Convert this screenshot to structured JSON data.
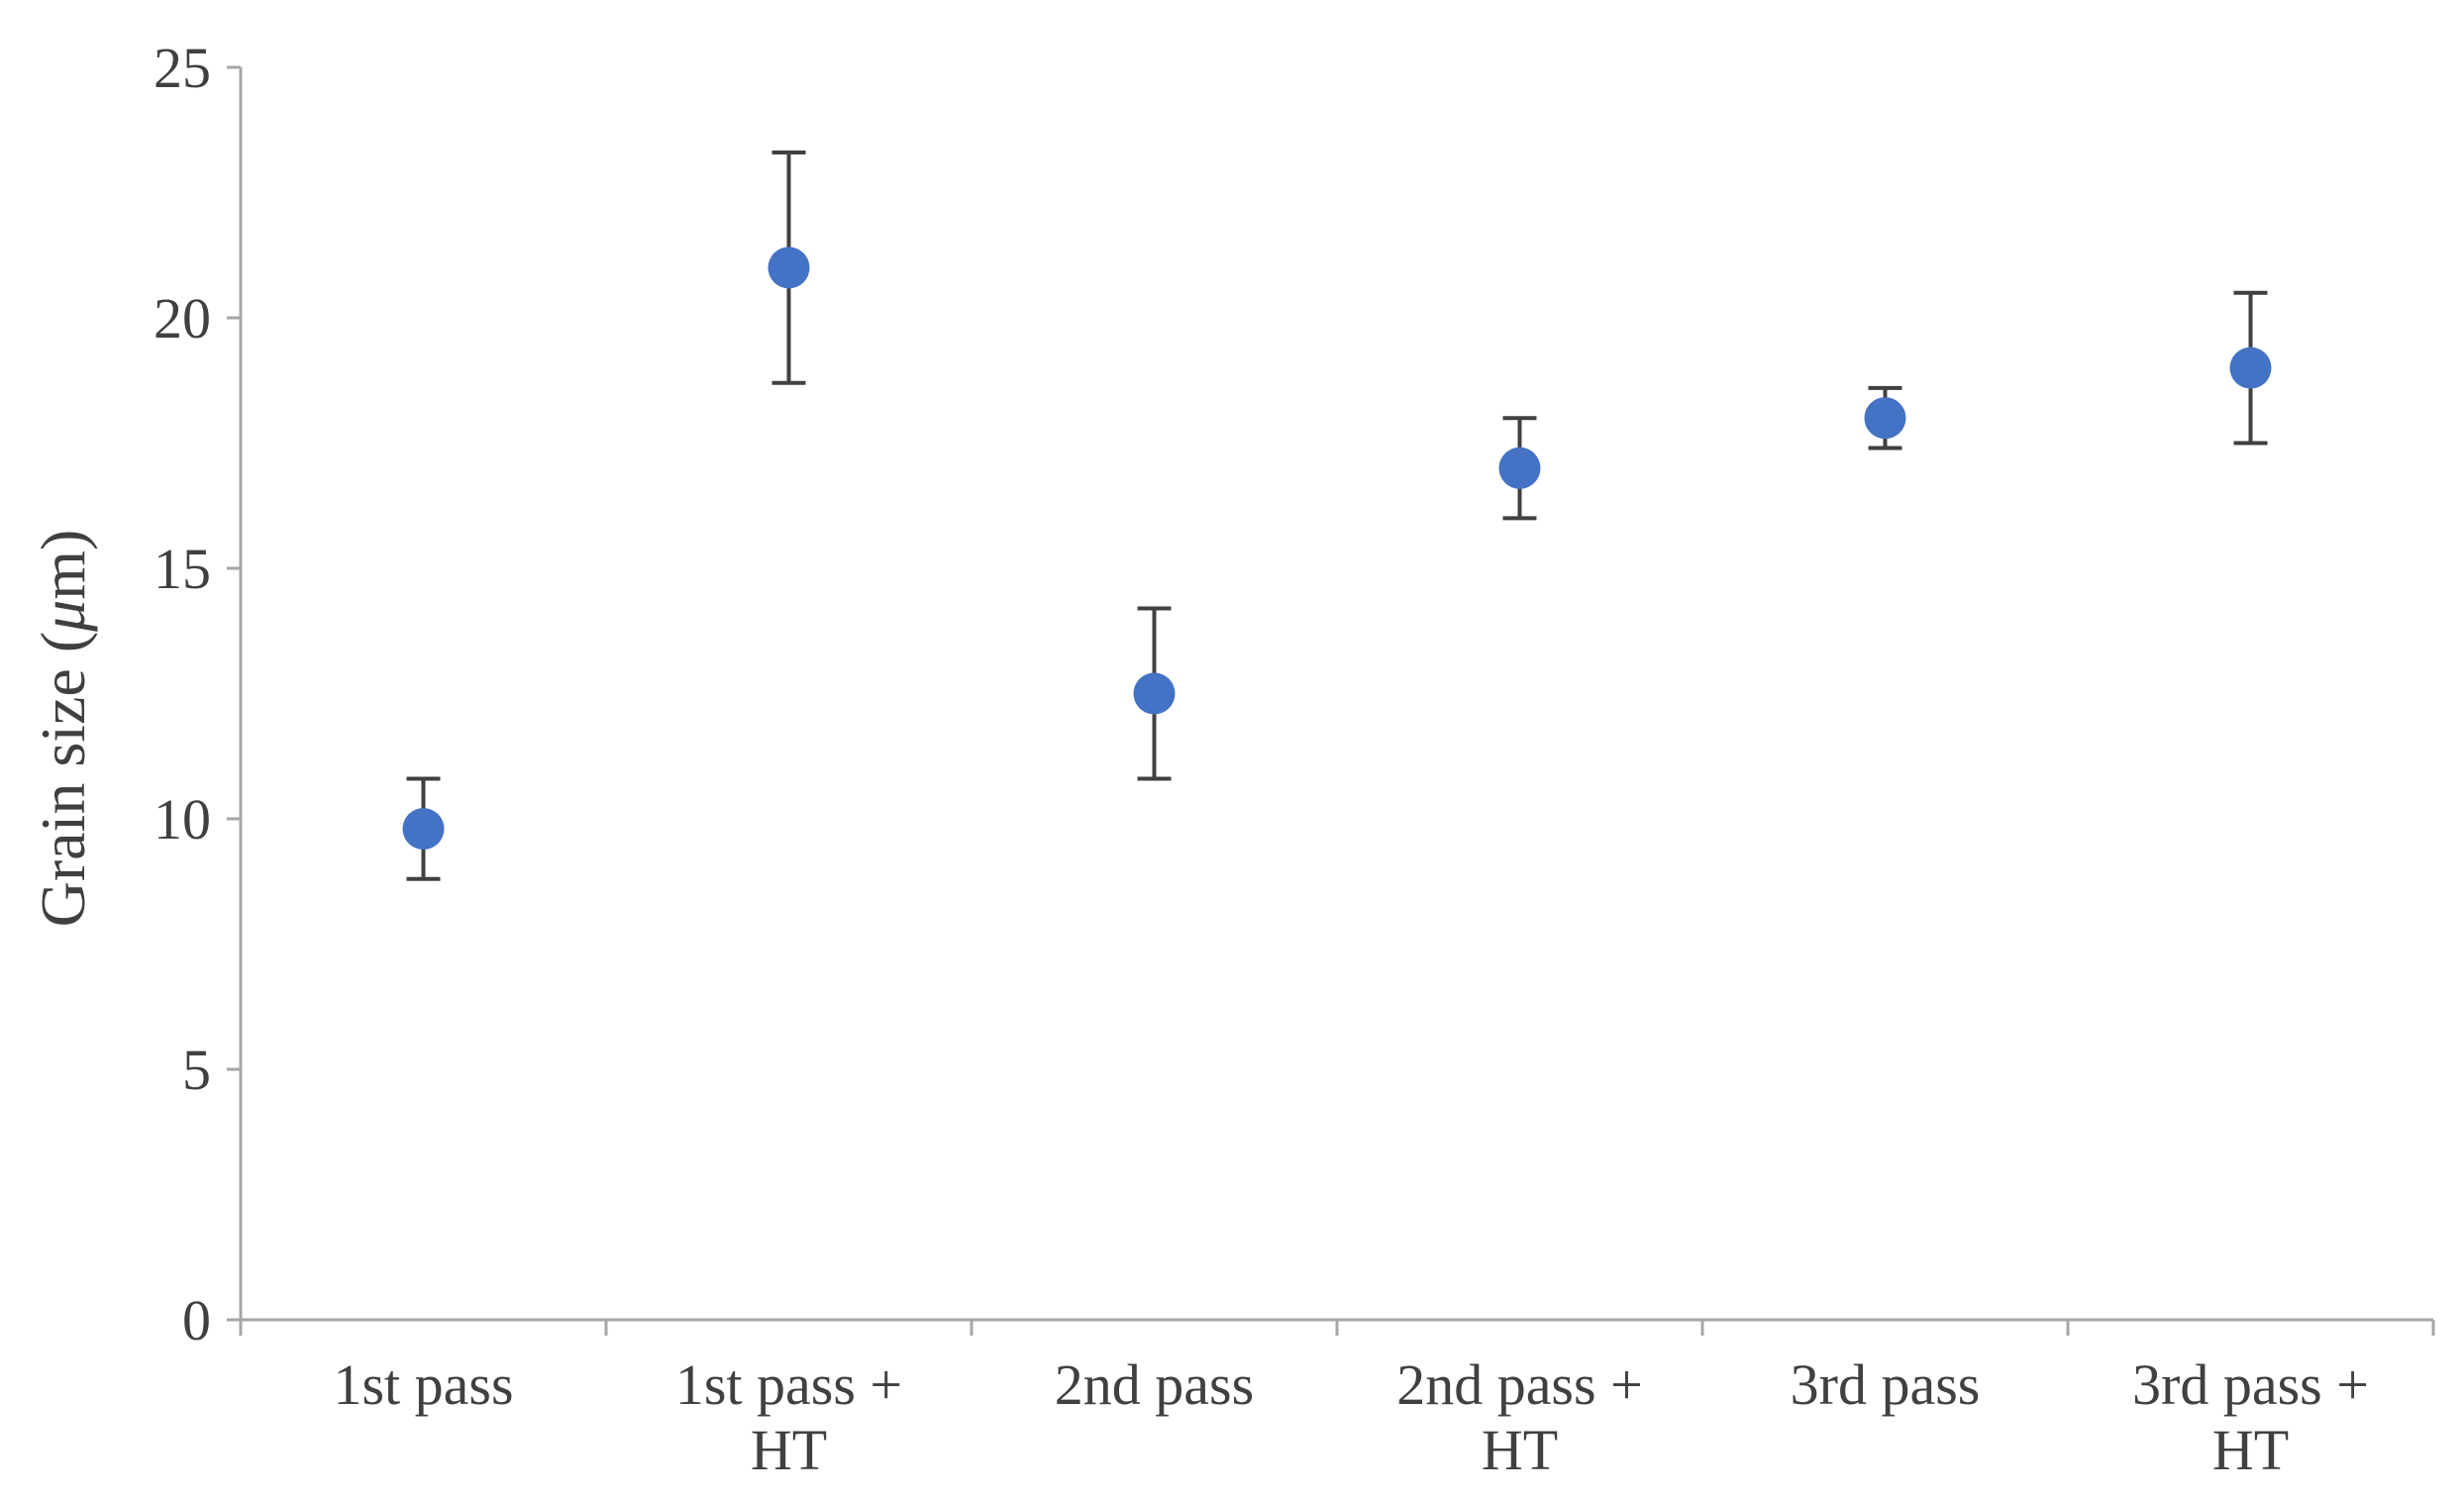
{
  "chart_data": {
    "type": "scatter",
    "title": "",
    "xlabel": "",
    "ylabel_prefix": "Grain size (",
    "ylabel_mu": "μ",
    "ylabel_suffix": "m)",
    "ylabel": "Grain size (μm)",
    "ylim": [
      0,
      25
    ],
    "yticks": [
      0,
      5,
      10,
      15,
      20,
      25
    ],
    "ytick_labels": [
      "0",
      "5",
      "10",
      "15",
      "20",
      "25"
    ],
    "grid": false,
    "categories": [
      [
        "1st pass"
      ],
      [
        "1st pass +",
        "HT"
      ],
      [
        "2nd pass"
      ],
      [
        "2nd pass +",
        "HT"
      ],
      [
        "3rd pass"
      ],
      [
        "3rd pass +",
        "HT"
      ]
    ],
    "series": [
      {
        "name": "Grain size",
        "values": [
          9.8,
          21.0,
          12.5,
          17.0,
          18.0,
          19.0
        ],
        "err_low": [
          8.8,
          18.7,
          10.8,
          16.0,
          17.4,
          17.5
        ],
        "err_high": [
          10.8,
          23.3,
          14.2,
          18.0,
          18.6,
          20.5
        ]
      }
    ],
    "colors": {
      "marker": "#4472C4",
      "errorbar": "#404040",
      "axis": "#a6a6a6",
      "text": "#404040"
    }
  }
}
